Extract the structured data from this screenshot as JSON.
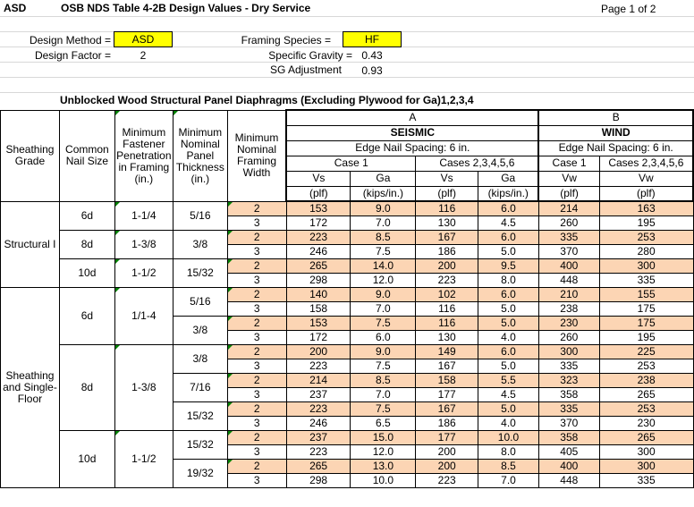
{
  "header": {
    "code": "ASD",
    "title": "OSB NDS Table 4-2B Design Values - Dry Service",
    "page": "Page 1 of 2"
  },
  "params": {
    "design_method_label": "Design Method =",
    "design_method_value": "ASD",
    "design_factor_label": "Design Factor =",
    "design_factor_value": "2",
    "framing_species_label": "Framing Species =",
    "framing_species_value": "HF",
    "specific_gravity_label": "Specific Gravity =",
    "specific_gravity_value": "0.43",
    "sg_adjustment_label": "SG Adjustment",
    "sg_adjustment_value": "0.93"
  },
  "table_title": "Unblocked Wood Structural Panel Diaphragms (Excluding Plywood for Ga)1,2,3,4",
  "columns": {
    "sheathing_grade": "Sheathing Grade",
    "common_nail_size": "Common Nail Size",
    "min_fastener_penetration": "Minimum Fastener Penetration in Framing (in.)",
    "min_nominal_panel_thickness": "Minimum Nominal Panel Thickness (in.)",
    "min_nominal_framing_width": "Minimum Nominal Framing Width",
    "group_a": "A",
    "group_b": "B",
    "seismic": "SEISMIC",
    "wind": "WIND",
    "edge_spacing_a": "Edge Nail Spacing: 6 in.",
    "edge_spacing_b": "Edge Nail Spacing: 6 in.",
    "case1_a": "Case 1",
    "cases_a": "Cases 2,3,4,5,6",
    "case1_b": "Case 1",
    "cases_b": "Cases 2,3,4,5,6",
    "vs1": "Vs",
    "ga1": "Ga",
    "vs2": "Vs",
    "ga2": "Ga",
    "vw1": "Vw",
    "vw2": "Vw",
    "u_vs1": "(plf)",
    "u_ga1": "(kips/in.)",
    "u_vs2": "(plf)",
    "u_ga2": "(kips/in.)",
    "u_vw1": "(plf)",
    "u_vw2": "(plf)"
  },
  "groups": {
    "structural": "Structural I",
    "sheathing": "Sheathing and Single-Floor"
  },
  "nails": {
    "s_6d": "6d",
    "s_8d": "8d",
    "s_10d": "10d",
    "p_6d": "1-1/4",
    "p_8d": "1-3/8",
    "p_10d": "1-1/2",
    "sh_6d": "6d",
    "sh_8d": "8d",
    "sh_10d": "10d",
    "shp_6d": "1/1-4",
    "shp_8d": "1-3/8",
    "shp_10d": "1-1/2"
  },
  "thickness": {
    "t1": "5/16",
    "t2": "3/8",
    "t3": "15/32",
    "t4": "5/16",
    "t5": "3/8",
    "t6": "3/8",
    "t7": "7/16",
    "t8": "15/32",
    "t9": "15/32",
    "t10": "19/32"
  },
  "rows": [
    {
      "w": "2",
      "vs1": "153",
      "ga1": "9.0",
      "vs2": "116",
      "ga2": "6.0",
      "vw1": "214",
      "vw2": "163"
    },
    {
      "w": "3",
      "vs1": "172",
      "ga1": "7.0",
      "vs2": "130",
      "ga2": "4.5",
      "vw1": "260",
      "vw2": "195"
    },
    {
      "w": "2",
      "vs1": "223",
      "ga1": "8.5",
      "vs2": "167",
      "ga2": "6.0",
      "vw1": "335",
      "vw2": "253"
    },
    {
      "w": "3",
      "vs1": "246",
      "ga1": "7.5",
      "vs2": "186",
      "ga2": "5.0",
      "vw1": "370",
      "vw2": "280"
    },
    {
      "w": "2",
      "vs1": "265",
      "ga1": "14.0",
      "vs2": "200",
      "ga2": "9.5",
      "vw1": "400",
      "vw2": "300"
    },
    {
      "w": "3",
      "vs1": "298",
      "ga1": "12.0",
      "vs2": "223",
      "ga2": "8.0",
      "vw1": "448",
      "vw2": "335"
    },
    {
      "w": "2",
      "vs1": "140",
      "ga1": "9.0",
      "vs2": "102",
      "ga2": "6.0",
      "vw1": "210",
      "vw2": "155"
    },
    {
      "w": "3",
      "vs1": "158",
      "ga1": "7.0",
      "vs2": "116",
      "ga2": "5.0",
      "vw1": "238",
      "vw2": "175"
    },
    {
      "w": "2",
      "vs1": "153",
      "ga1": "7.5",
      "vs2": "116",
      "ga2": "5.0",
      "vw1": "230",
      "vw2": "175"
    },
    {
      "w": "3",
      "vs1": "172",
      "ga1": "6.0",
      "vs2": "130",
      "ga2": "4.0",
      "vw1": "260",
      "vw2": "195"
    },
    {
      "w": "2",
      "vs1": "200",
      "ga1": "9.0",
      "vs2": "149",
      "ga2": "6.0",
      "vw1": "300",
      "vw2": "225"
    },
    {
      "w": "3",
      "vs1": "223",
      "ga1": "7.5",
      "vs2": "167",
      "ga2": "5.0",
      "vw1": "335",
      "vw2": "253"
    },
    {
      "w": "2",
      "vs1": "214",
      "ga1": "8.5",
      "vs2": "158",
      "ga2": "5.5",
      "vw1": "323",
      "vw2": "238"
    },
    {
      "w": "3",
      "vs1": "237",
      "ga1": "7.0",
      "vs2": "177",
      "ga2": "4.5",
      "vw1": "358",
      "vw2": "265"
    },
    {
      "w": "2",
      "vs1": "223",
      "ga1": "7.5",
      "vs2": "167",
      "ga2": "5.0",
      "vw1": "335",
      "vw2": "253"
    },
    {
      "w": "3",
      "vs1": "246",
      "ga1": "6.5",
      "vs2": "186",
      "ga2": "4.0",
      "vw1": "370",
      "vw2": "230"
    },
    {
      "w": "2",
      "vs1": "237",
      "ga1": "15.0",
      "vs2": "177",
      "ga2": "10.0",
      "vw1": "358",
      "vw2": "265"
    },
    {
      "w": "3",
      "vs1": "223",
      "ga1": "12.0",
      "vs2": "200",
      "ga2": "8.0",
      "vw1": "405",
      "vw2": "300"
    },
    {
      "w": "2",
      "vs1": "265",
      "ga1": "13.0",
      "vs2": "200",
      "ga2": "8.5",
      "vw1": "400",
      "vw2": "300"
    },
    {
      "w": "3",
      "vs1": "298",
      "ga1": "10.0",
      "vs2": "223",
      "ga2": "7.0",
      "vw1": "448",
      "vw2": "335"
    }
  ],
  "colors": {
    "input_yellow": "#ffff00",
    "value_orange": "#fcd5b4",
    "comment_marker": "#008000"
  }
}
